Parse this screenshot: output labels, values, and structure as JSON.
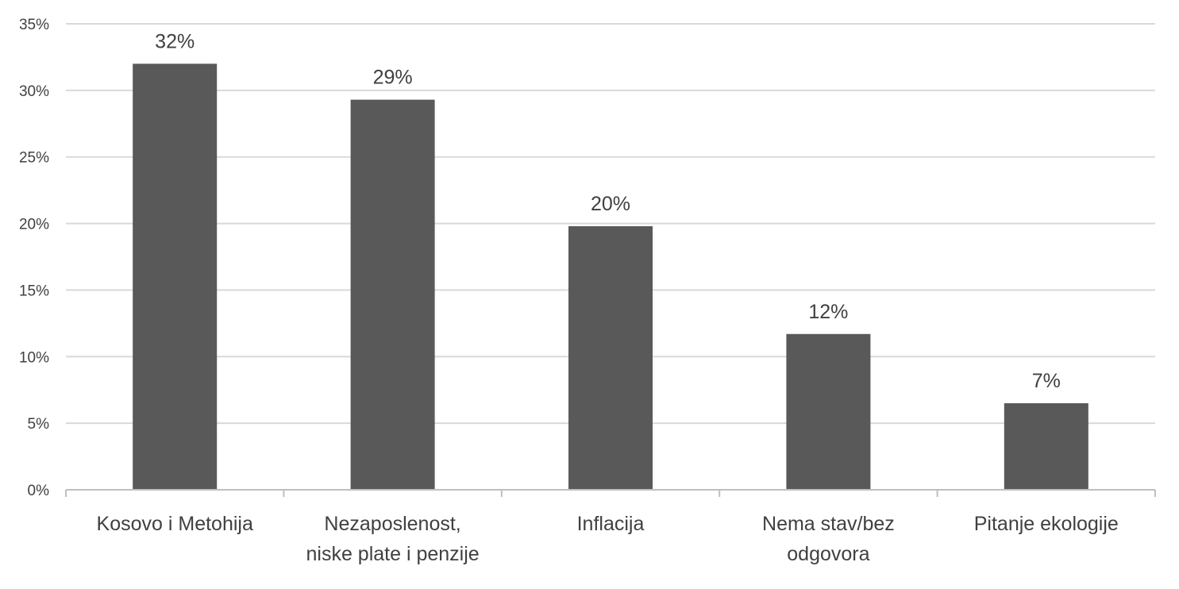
{
  "chart_data": {
    "type": "bar",
    "title": "",
    "xlabel": "",
    "ylabel": "",
    "categories": [
      [
        "Kosovo i Metohija"
      ],
      [
        "Nezaposlenost,",
        "niske plate i penzije"
      ],
      [
        "Inflacija"
      ],
      [
        "Nema stav/bez",
        "odgovora"
      ],
      [
        "Pitanje ekologije"
      ]
    ],
    "values": [
      32.0,
      29.3,
      19.8,
      11.7,
      6.5
    ],
    "data_labels": [
      "32%",
      "29%",
      "20%",
      "12%",
      "7%"
    ],
    "ylim": [
      0,
      35
    ],
    "yticks": [
      0,
      5,
      10,
      15,
      20,
      25,
      30,
      35
    ],
    "ytick_labels": [
      "0%",
      "5%",
      "10%",
      "15%",
      "20%",
      "25%",
      "30%",
      "35%"
    ],
    "grid": true,
    "legend": "none",
    "colors": {
      "bar": "#595959",
      "grid": "#d9d9d9",
      "text": "#404040"
    }
  }
}
